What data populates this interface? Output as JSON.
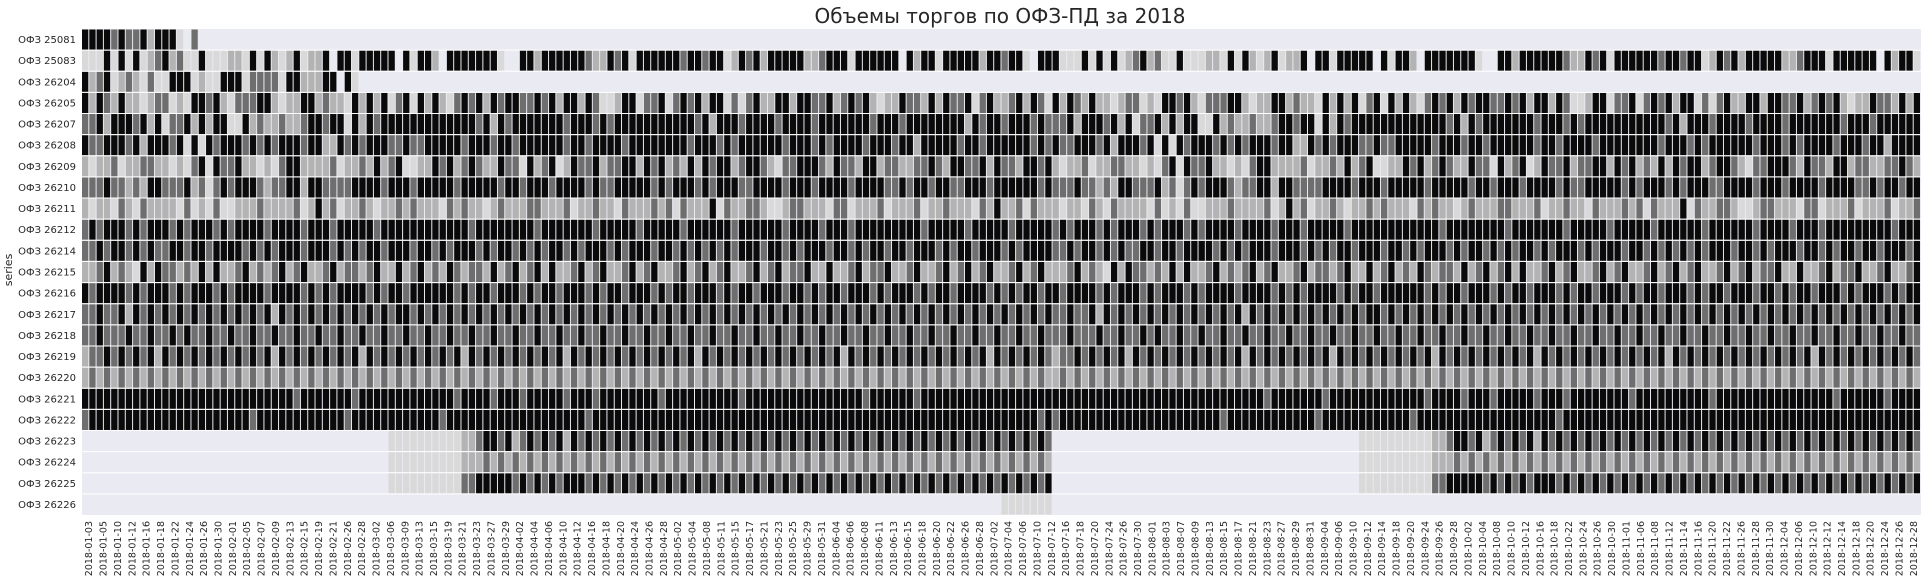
{
  "chart_data": {
    "type": "heatmap",
    "title": "Объемы торгов по ОФЗ-ПД за 2018",
    "ylabel": "series",
    "xlabel": "",
    "colormap": "greys",
    "colors": {
      "background": "#eaeaf2",
      "grid": "#ffffff",
      "empty": "#eaeaf2"
    },
    "rows": [
      "ОФЗ 25081",
      "ОФЗ 25083",
      "ОФЗ 26204",
      "ОФЗ 26205",
      "ОФЗ 26207",
      "ОФЗ 26208",
      "ОФЗ 26209",
      "ОФЗ 26210",
      "ОФЗ 26211",
      "ОФЗ 26212",
      "ОФЗ 26214",
      "ОФЗ 26215",
      "ОФЗ 26216",
      "ОФЗ 26217",
      "ОФЗ 26218",
      "ОФЗ 26219",
      "ОФЗ 26220",
      "ОФЗ 26221",
      "ОФЗ 26222",
      "ОФЗ 26223",
      "ОФЗ 26224",
      "ОФЗ 26225",
      "ОФЗ 26226"
    ],
    "x_tick_labels": [
      "2018-01-03",
      "2018-01-05",
      "2018-01-10",
      "2018-01-12",
      "2018-01-16",
      "2018-01-18",
      "2018-01-22",
      "2018-01-24",
      "2018-01-26",
      "2018-01-30",
      "2018-02-01",
      "2018-02-05",
      "2018-02-07",
      "2018-02-09",
      "2018-02-13",
      "2018-02-15",
      "2018-02-19",
      "2018-02-21",
      "2018-02-26",
      "2018-02-28",
      "2018-03-02",
      "2018-03-06",
      "2018-03-09",
      "2018-03-13",
      "2018-03-15",
      "2018-03-19",
      "2018-03-21",
      "2018-03-23",
      "2018-03-27",
      "2018-03-29",
      "2018-04-02",
      "2018-04-04",
      "2018-04-06",
      "2018-04-10",
      "2018-04-12",
      "2018-04-16",
      "2018-04-18",
      "2018-04-20",
      "2018-04-24",
      "2018-04-26",
      "2018-04-28",
      "2018-05-02",
      "2018-05-04",
      "2018-05-08",
      "2018-05-11",
      "2018-05-15",
      "2018-05-17",
      "2018-05-21",
      "2018-05-23",
      "2018-05-25",
      "2018-05-29",
      "2018-05-31",
      "2018-06-04",
      "2018-06-06",
      "2018-06-08",
      "2018-06-11",
      "2018-06-13",
      "2018-06-15",
      "2018-06-18",
      "2018-06-20",
      "2018-06-22",
      "2018-06-26",
      "2018-06-28",
      "2018-07-02",
      "2018-07-04",
      "2018-07-06",
      "2018-07-10",
      "2018-07-12",
      "2018-07-16",
      "2018-07-18",
      "2018-07-20",
      "2018-07-24",
      "2018-07-26",
      "2018-07-30",
      "2018-08-01",
      "2018-08-03",
      "2018-08-07",
      "2018-08-09",
      "2018-08-13",
      "2018-08-15",
      "2018-08-17",
      "2018-08-21",
      "2018-08-23",
      "2018-08-27",
      "2018-08-29",
      "2018-08-31",
      "2018-09-04",
      "2018-09-06",
      "2018-09-10",
      "2018-09-12",
      "2018-09-14",
      "2018-09-18",
      "2018-09-20",
      "2018-09-24",
      "2018-09-26",
      "2018-09-28",
      "2018-10-02",
      "2018-10-04",
      "2018-10-08",
      "2018-10-10",
      "2018-10-12",
      "2018-10-16",
      "2018-10-18",
      "2018-10-22",
      "2018-10-24",
      "2018-10-26",
      "2018-10-30",
      "2018-11-01",
      "2018-11-06",
      "2018-11-08",
      "2018-11-12",
      "2018-11-14",
      "2018-11-16",
      "2018-11-20",
      "2018-11-22",
      "2018-11-26",
      "2018-11-28",
      "2018-11-30",
      "2018-12-04",
      "2018-12-06",
      "2018-12-10",
      "2018-12-12",
      "2018-12-14",
      "2018-12-18",
      "2018-12-20",
      "2018-12-24",
      "2018-12-26",
      "2018-12-28"
    ],
    "n_columns": 252,
    "active_ranges": [
      [
        0,
        15
      ],
      [
        0,
        251
      ],
      [
        0,
        37
      ],
      [
        0,
        251
      ],
      [
        0,
        251
      ],
      [
        0,
        251
      ],
      [
        0,
        251
      ],
      [
        0,
        251
      ],
      [
        0,
        251
      ],
      [
        0,
        251
      ],
      [
        0,
        251
      ],
      [
        0,
        251
      ],
      [
        0,
        251
      ],
      [
        0,
        251
      ],
      [
        0,
        251
      ],
      [
        0,
        251
      ],
      [
        0,
        251
      ],
      [
        0,
        251
      ],
      [
        0,
        251
      ],
      [
        0,
        251
      ],
      [
        0,
        251
      ],
      [
        0,
        251
      ],
      [
        0,
        251
      ]
    ],
    "level_scale": [
      0,
      4
    ],
    "row_levels": [
      "44443433424441030",
      "11141414123423114111221414212412240441444440414420444444410044244444432243414444443443441243424444422344414444440424414444424434410444",
      "423412321311444121144413333144222440414",
      "4243242212331214434213334421224423221424241341424213434243443343424424311244133413434244131342244244334234342122433242433413422342431",
      "3342444342413342424411423223223443441424344444444444443424344444443444343444444444443424443444434444344444443444344444444243443444343",
      "4334443424443414143444343434443442243434443343344444344434434444443443444434444444434443434444443444343444434443442444443443444444343",
      "2122312233221213414334221213442222312232423411224342343224331423412433423344243423242434423443213344432433244233223343244334243324434",
      "3334332324433342313434443233442443333444434443444443444443443444344443433444443434443434443344443444344443444433434434433444344444434",
      "2122132132222131213112223222231242312232122323222132322123222332223122322132223231322241322332112332221331222312223122322213242231322",
      "3434443434443434443434444344443444344444344444444444434444444434444444344444344444344444434444443444434443444444444344444344444344444",
      "3343443434334434434444343434443444343434434443443434443434434343443434443434443443434343434443443434443443434434434443434434443434444",
      "2234232142433232424223423234234223423323422423423243233242342342422342342234234223423423422342342334224223423342234223423423422342342",
      "4344443434443434443434444344443434344443434434444443434434443434434443434434443434434443434434443443434434443434443434434444343434434",
      "3343342434343434343434343424343434343434343443434343434343434343434343434343434343434343434343434343434343434343434343434343434343434",
      "3343334334334343343343343343343343343343343343343343343343343343343343343343343343343343343343343343343343343343343343343343343343343",
      "2334343434243434343434343424343434343424343434343434243434343434342434343434343434342434343434343434343424343434343434343434243434343",
      "2323232323232323232323232323232323232323232323232323232323232323232323232323232323232323232323232323232323232323232323232323232323232",
      "4444444444444444444444444444434444444344444444444443444434443444443444344444444344444444443444444444444444434444443444444444444444444",
      "3444444444444444444444434444444444443444444444444344444444444444444443444444444444444444444444444444444444444444444444444444444444434",
      "0000000000000000000000000000000000000000001111111111223443423434342434343434343434343434343434343434343434343434343434343434343434343",
      "0000000000000000000000000000000000000000001111111111222323232323232323232323232323232323232323232323232323232323232323232323232323232",
      "0000000000000000000000000000000000000000001111111111334444434343434443434343434343434343434343434343434343434343434343434343434343434",
      "0000000000000000000000000000000000000000000000000000000000000000000000000000000000000000000000000000000000000000000000000000001111111"
    ]
  }
}
